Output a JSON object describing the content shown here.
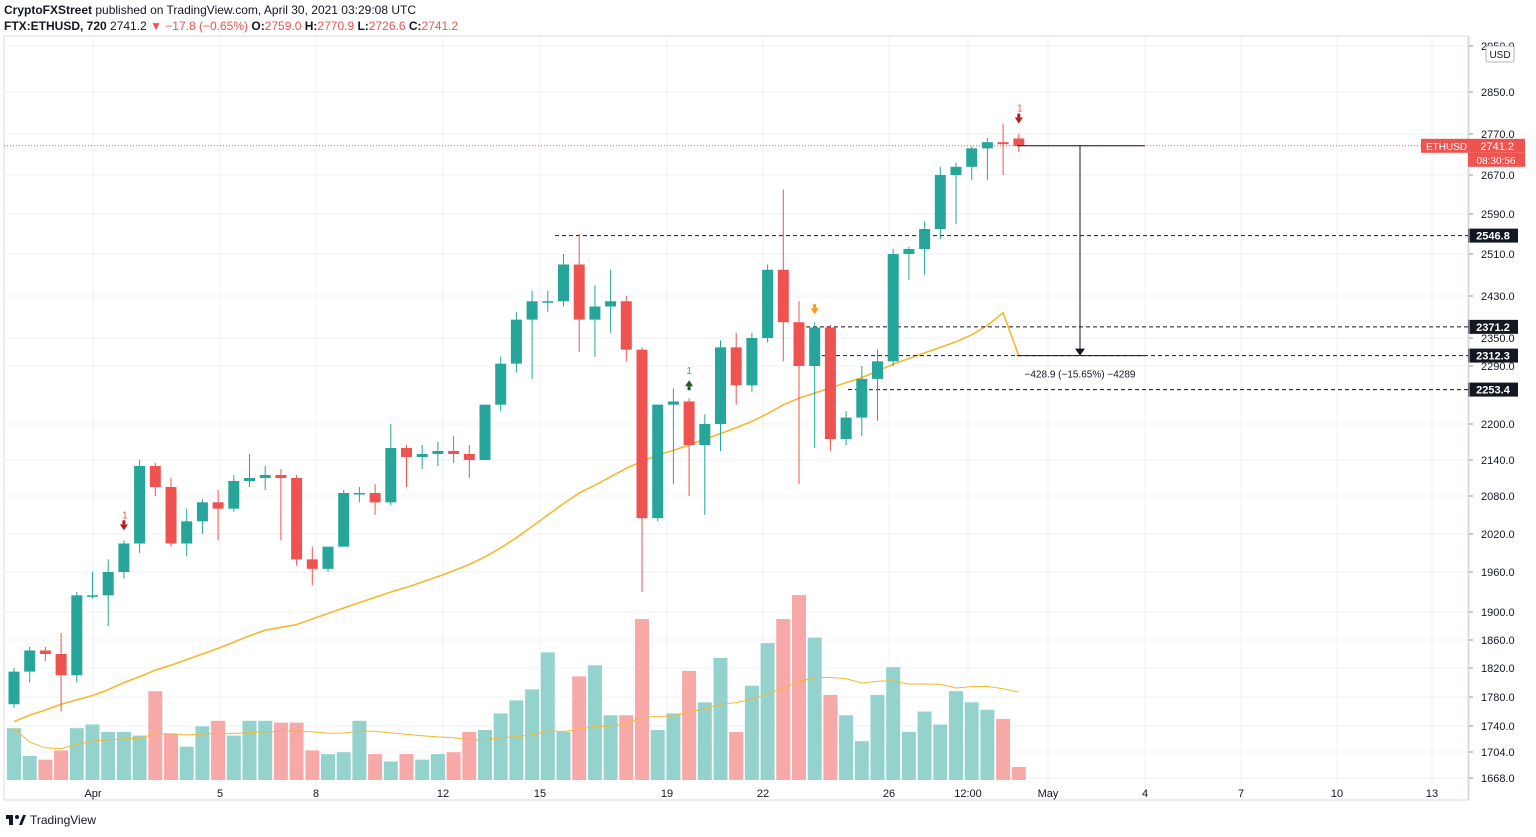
{
  "header": {
    "publisher": "CryptoFXStreet",
    "published_text": "published on TradingView.com, April 30, 2021 03:29:08 UTC"
  },
  "ohlc": {
    "symbol": "FTX:ETHUSD, 720",
    "last": "2741.2",
    "change": "▼ −17.8 (−0.65%)",
    "o_label": "O:",
    "o": "2759.0",
    "h_label": "H:",
    "h": "2770.9",
    "l_label": "L:",
    "l": "2726.6",
    "c_label": "C:",
    "c": "2741.2"
  },
  "footer": {
    "brand": "TradingView"
  },
  "colors": {
    "up": "#26a69a",
    "down": "#ef5350",
    "vol_up": "#94d3cd",
    "vol_down": "#f7a9a7",
    "ma": "#f5b82e",
    "last_price_bg": "#ef5350"
  },
  "chart_data": {
    "type": "candlestick",
    "currency": "USD",
    "y_ticks": [
      "2850.0",
      "2770.0",
      "2670.0",
      "2590.0",
      "2510.0",
      "2430.0",
      "2350.0",
      "2290.0",
      "2200.0",
      "2140.0",
      "2080.0",
      "2020.0",
      "1960.0",
      "1900.0",
      "1860.0",
      "1820.0",
      "1780.0",
      "1740.0",
      "1704.0",
      "1668.0",
      "2950.0"
    ],
    "x_ticks": [
      "Apr",
      "5",
      "8",
      "12",
      "15",
      "19",
      "22",
      "26",
      "12:00",
      "May",
      "4",
      "7",
      "10",
      "13"
    ],
    "candles": [
      [
        1770,
        1820,
        1765,
        1815
      ],
      [
        1815,
        1850,
        1800,
        1845
      ],
      [
        1845,
        1850,
        1830,
        1840
      ],
      [
        1840,
        1870,
        1760,
        1810
      ],
      [
        1810,
        1930,
        1800,
        1925
      ],
      [
        1925,
        1960,
        1920,
        1925
      ],
      [
        1925,
        1980,
        1880,
        1960
      ],
      [
        1960,
        2010,
        1950,
        2005
      ],
      [
        2005,
        2140,
        1990,
        2130
      ],
      [
        2130,
        2135,
        2080,
        2095
      ],
      [
        2095,
        2110,
        2000,
        2005
      ],
      [
        2005,
        2060,
        1985,
        2040
      ],
      [
        2040,
        2075,
        2020,
        2070
      ],
      [
        2070,
        2090,
        2010,
        2060
      ],
      [
        2060,
        2115,
        2055,
        2105
      ],
      [
        2105,
        2150,
        2095,
        2110
      ],
      [
        2110,
        2130,
        2090,
        2115
      ],
      [
        2115,
        2125,
        2010,
        2110
      ],
      [
        2110,
        2115,
        1970,
        1980
      ],
      [
        1980,
        2000,
        1940,
        1965
      ],
      [
        1965,
        2000,
        1960,
        2000
      ],
      [
        2000,
        2090,
        2000,
        2085
      ],
      [
        2085,
        2095,
        2070,
        2085
      ],
      [
        2085,
        2100,
        2050,
        2070
      ],
      [
        2070,
        2200,
        2065,
        2160
      ],
      [
        2160,
        2165,
        2095,
        2145
      ],
      [
        2145,
        2165,
        2125,
        2150
      ],
      [
        2150,
        2170,
        2130,
        2155
      ],
      [
        2155,
        2180,
        2135,
        2150
      ],
      [
        2150,
        2165,
        2110,
        2140
      ],
      [
        2140,
        2230,
        2140,
        2230
      ],
      [
        2230,
        2310,
        2220,
        2295
      ],
      [
        2295,
        2400,
        2280,
        2385
      ],
      [
        2385,
        2440,
        2270,
        2420
      ],
      [
        2420,
        2440,
        2400,
        2420
      ],
      [
        2420,
        2510,
        2410,
        2490
      ],
      [
        2490,
        2550,
        2320,
        2385
      ],
      [
        2385,
        2450,
        2310,
        2410
      ],
      [
        2410,
        2480,
        2360,
        2420
      ],
      [
        2420,
        2430,
        2300,
        2325
      ],
      [
        2325,
        2330,
        1930,
        2045
      ],
      [
        2045,
        2230,
        2040,
        2230
      ],
      [
        2230,
        2255,
        2100,
        2235
      ],
      [
        2235,
        2240,
        2080,
        2165
      ],
      [
        2165,
        2215,
        2050,
        2200
      ],
      [
        2200,
        2345,
        2155,
        2330
      ],
      [
        2330,
        2360,
        2230,
        2260
      ],
      [
        2260,
        2360,
        2250,
        2350
      ],
      [
        2350,
        2490,
        2340,
        2480
      ],
      [
        2480,
        2640,
        2300,
        2380
      ],
      [
        2380,
        2420,
        2100,
        2290
      ],
      [
        2290,
        2380,
        2160,
        2370
      ],
      [
        2370,
        2375,
        2155,
        2175
      ],
      [
        2175,
        2220,
        2165,
        2210
      ],
      [
        2210,
        2290,
        2180,
        2270
      ],
      [
        2270,
        2325,
        2205,
        2300
      ],
      [
        2300,
        2520,
        2290,
        2510
      ],
      [
        2510,
        2525,
        2460,
        2520
      ],
      [
        2520,
        2575,
        2470,
        2560
      ],
      [
        2560,
        2690,
        2540,
        2670
      ],
      [
        2670,
        2700,
        2570,
        2690
      ],
      [
        2690,
        2740,
        2660,
        2735
      ],
      [
        2735,
        2760,
        2660,
        2750
      ],
      [
        2750,
        2790,
        2670,
        2745
      ],
      [
        2759,
        2770.9,
        2726.6,
        2741.2
      ]
    ],
    "volumes": [
      0.28,
      0.13,
      0.11,
      0.16,
      0.28,
      0.3,
      0.26,
      0.26,
      0.24,
      0.48,
      0.25,
      0.18,
      0.29,
      0.32,
      0.24,
      0.32,
      0.32,
      0.31,
      0.31,
      0.16,
      0.14,
      0.15,
      0.32,
      0.14,
      0.1,
      0.14,
      0.11,
      0.14,
      0.15,
      0.26,
      0.27,
      0.36,
      0.43,
      0.49,
      0.69,
      0.26,
      0.56,
      0.62,
      0.35,
      0.35,
      0.87,
      0.27,
      0.36,
      0.59,
      0.42,
      0.66,
      0.26,
      0.51,
      0.74,
      0.87,
      1.0,
      0.77,
      0.46,
      0.35,
      0.21,
      0.46,
      0.61,
      0.26,
      0.37,
      0.3,
      0.48,
      0.42,
      0.38,
      0.33,
      0.07
    ],
    "ma": [
      1746,
      1755,
      1762,
      1770,
      1776,
      1782,
      1790,
      1800,
      1808,
      1817,
      1824,
      1832,
      1840,
      1848,
      1857,
      1866,
      1874,
      1878,
      1882,
      1890,
      1898,
      1906,
      1914,
      1922,
      1930,
      1937,
      1945,
      1953,
      1962,
      1972,
      1984,
      1998,
      2014,
      2032,
      2050,
      2068,
      2085,
      2098,
      2112,
      2126,
      2138,
      2148,
      2156,
      2165,
      2175,
      2184,
      2194,
      2204,
      2216,
      2230,
      2240,
      2248,
      2256,
      2264,
      2272,
      2282,
      2294,
      2306,
      2318,
      2330,
      2342,
      2356,
      2374,
      2398,
      2312
    ],
    "levels": [
      {
        "value": 2546.8,
        "label": "2546.8"
      },
      {
        "value": 2371.2,
        "label": "2371.2"
      },
      {
        "value": 2312.3,
        "label": "2312.3"
      },
      {
        "value": 2253.4,
        "label": "2253.4"
      }
    ],
    "last_price": {
      "symbol": "ETHUSD",
      "value": "2741.2",
      "countdown": "08:30:56"
    },
    "measure": {
      "text": "−428.9 (−15.65%) −4289",
      "from": 2741.2,
      "to": 2312.3
    },
    "signals": [
      {
        "index": 7,
        "type": "sell",
        "label": "1"
      },
      {
        "index": 43,
        "type": "buy",
        "label": "1"
      },
      {
        "index": 51,
        "type": "warn",
        "label": ""
      },
      {
        "index": 64,
        "type": "sell",
        "label": "1"
      }
    ]
  }
}
